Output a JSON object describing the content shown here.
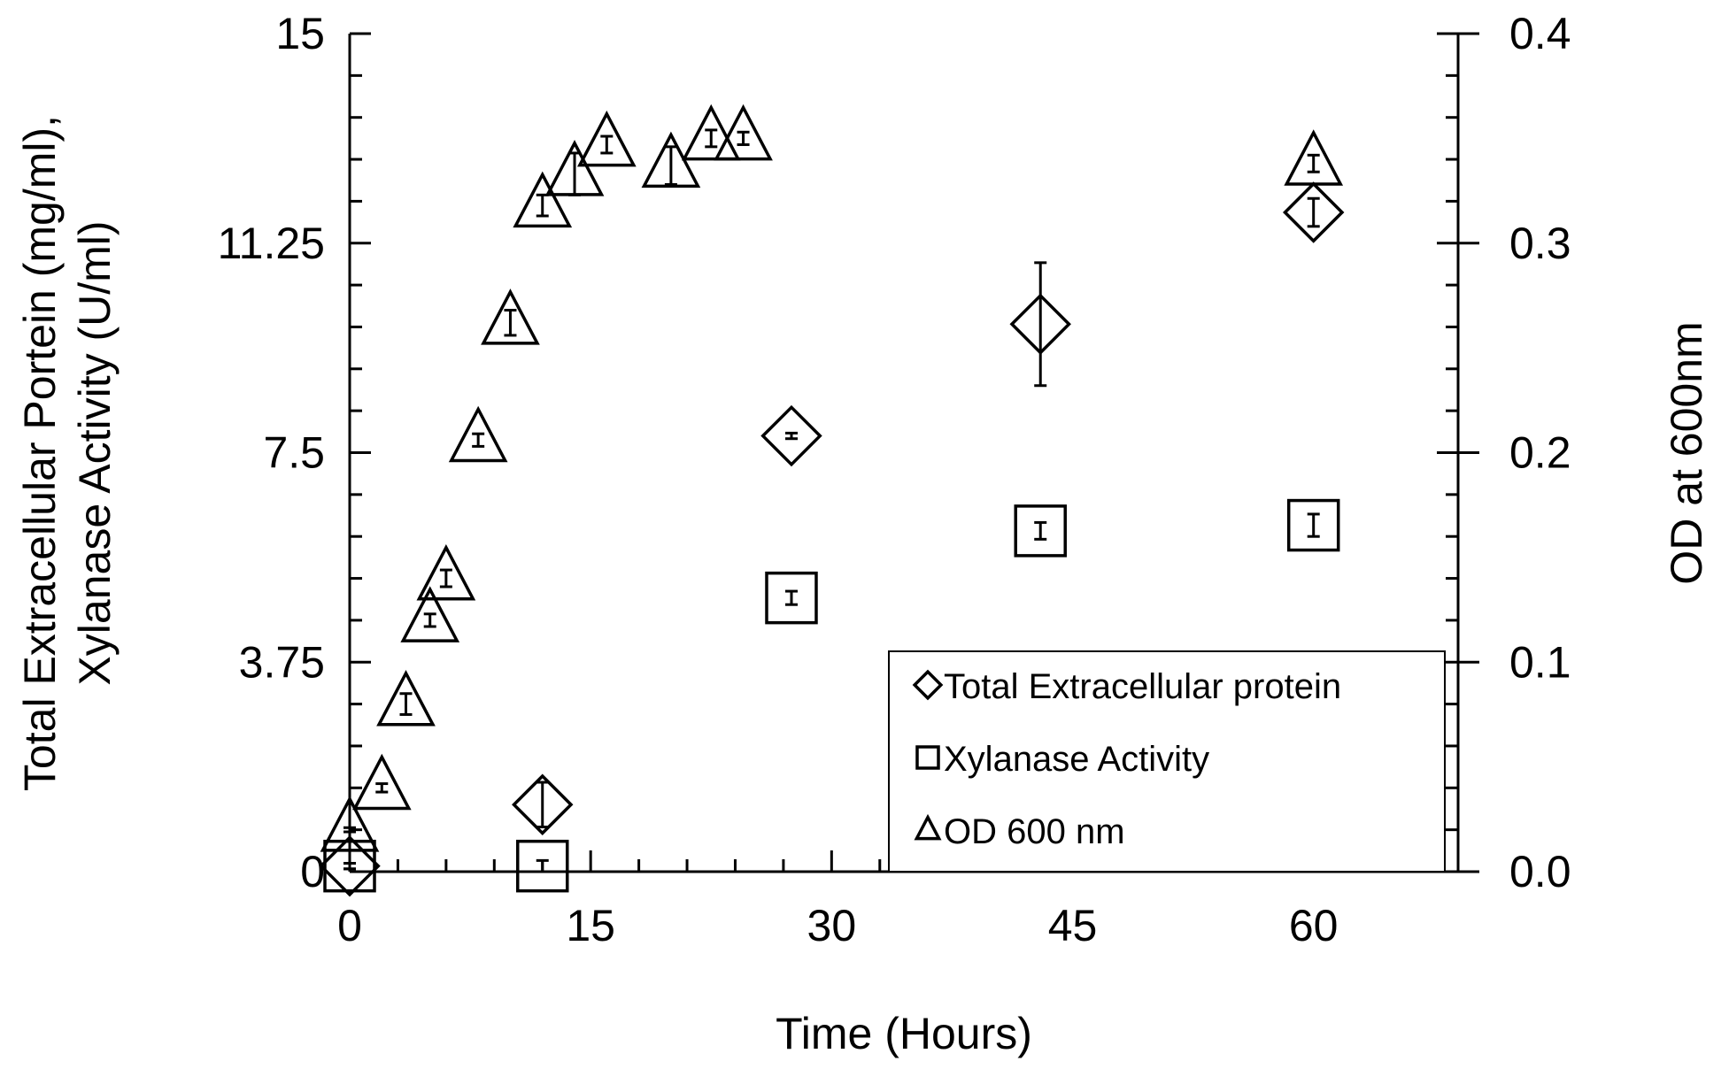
{
  "chart_data": {
    "type": "scatter",
    "xlabel": "Time (Hours)",
    "ylabel_left": [
      "Total Extracellular Portein (mg/ml),",
      "Xylanase Activity (U/ml)"
    ],
    "ylabel_right": "OD at 600nm",
    "xlim": [
      0,
      69
    ],
    "ylim_left": [
      0,
      15
    ],
    "ylim_right": [
      0,
      0.4
    ],
    "x_ticks": [
      "0",
      "15",
      "30",
      "45",
      "60"
    ],
    "y_left_ticks": [
      "0",
      "3.75",
      "7.5",
      "11.25",
      "15"
    ],
    "y_right_ticks": [
      "0.0",
      "0.1",
      "0.2",
      "0.3",
      "0.4"
    ],
    "grid": false,
    "legend_position": "bottom-right",
    "series": [
      {
        "name": "Total Extracellular protein",
        "marker": "diamond",
        "axis": "left",
        "x": [
          0,
          12,
          27.5,
          43,
          60
        ],
        "y": [
          0.1,
          1.2,
          7.8,
          9.8,
          11.8
        ],
        "err": [
          0.05,
          0.4,
          0.05,
          1.1,
          0.25
        ]
      },
      {
        "name": "Xylanase Activity",
        "marker": "square",
        "axis": "left",
        "x": [
          0,
          12,
          27.5,
          43,
          60
        ],
        "y": [
          0.1,
          0.1,
          4.9,
          6.1,
          6.2
        ],
        "err": [
          0.05,
          0.1,
          0.12,
          0.15,
          0.2
        ]
      },
      {
        "name": "OD 600 nm",
        "marker": "triangle",
        "axis": "right",
        "x": [
          0,
          2,
          3.5,
          5,
          6,
          8,
          10,
          12,
          14,
          16,
          20,
          22.5,
          24.5,
          60
        ],
        "y": [
          0.02,
          0.04,
          0.08,
          0.12,
          0.14,
          0.206,
          0.262,
          0.318,
          0.333,
          0.347,
          0.337,
          0.35,
          0.35,
          0.338
        ],
        "err": [
          0.001,
          0.002,
          0.005,
          0.003,
          0.004,
          0.003,
          0.006,
          0.005,
          0.01,
          0.004,
          0.009,
          0.004,
          0.003,
          0.004
        ]
      }
    ]
  }
}
